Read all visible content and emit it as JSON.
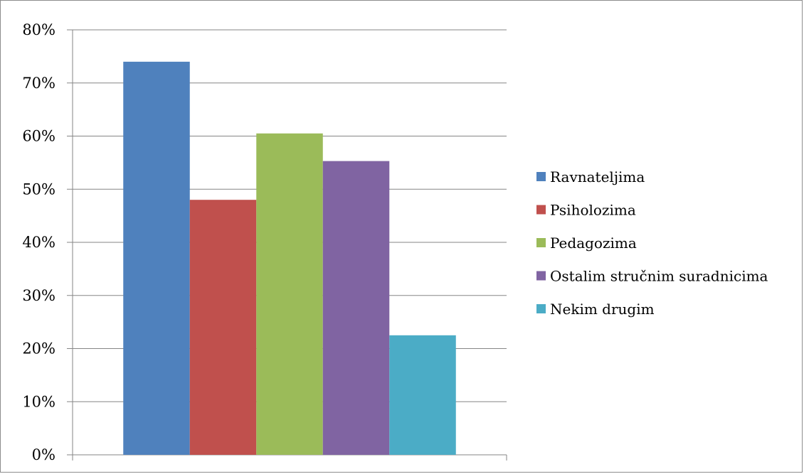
{
  "chart_data": {
    "type": "bar",
    "title": "",
    "xlabel": "",
    "ylabel": "",
    "ylim": [
      0,
      80
    ],
    "y_tick_labels": [
      "0%",
      "10%",
      "20%",
      "30%",
      "40%",
      "50%",
      "60%",
      "70%",
      "80%"
    ],
    "grid": true,
    "legend_position": "right",
    "series": [
      {
        "name": "Ravnateljima",
        "values": [
          74
        ],
        "color": "#4f81bd"
      },
      {
        "name": "Psiholozima",
        "values": [
          48
        ],
        "color": "#c0504d"
      },
      {
        "name": "Pedagozima",
        "values": [
          60.5
        ],
        "color": "#9bbb59"
      },
      {
        "name": "Ostalim stručnim suradnicima",
        "values": [
          55.3
        ],
        "color": "#8064a2"
      },
      {
        "name": "Nekim drugim",
        "values": [
          22.5
        ],
        "color": "#4bacc6"
      }
    ]
  }
}
